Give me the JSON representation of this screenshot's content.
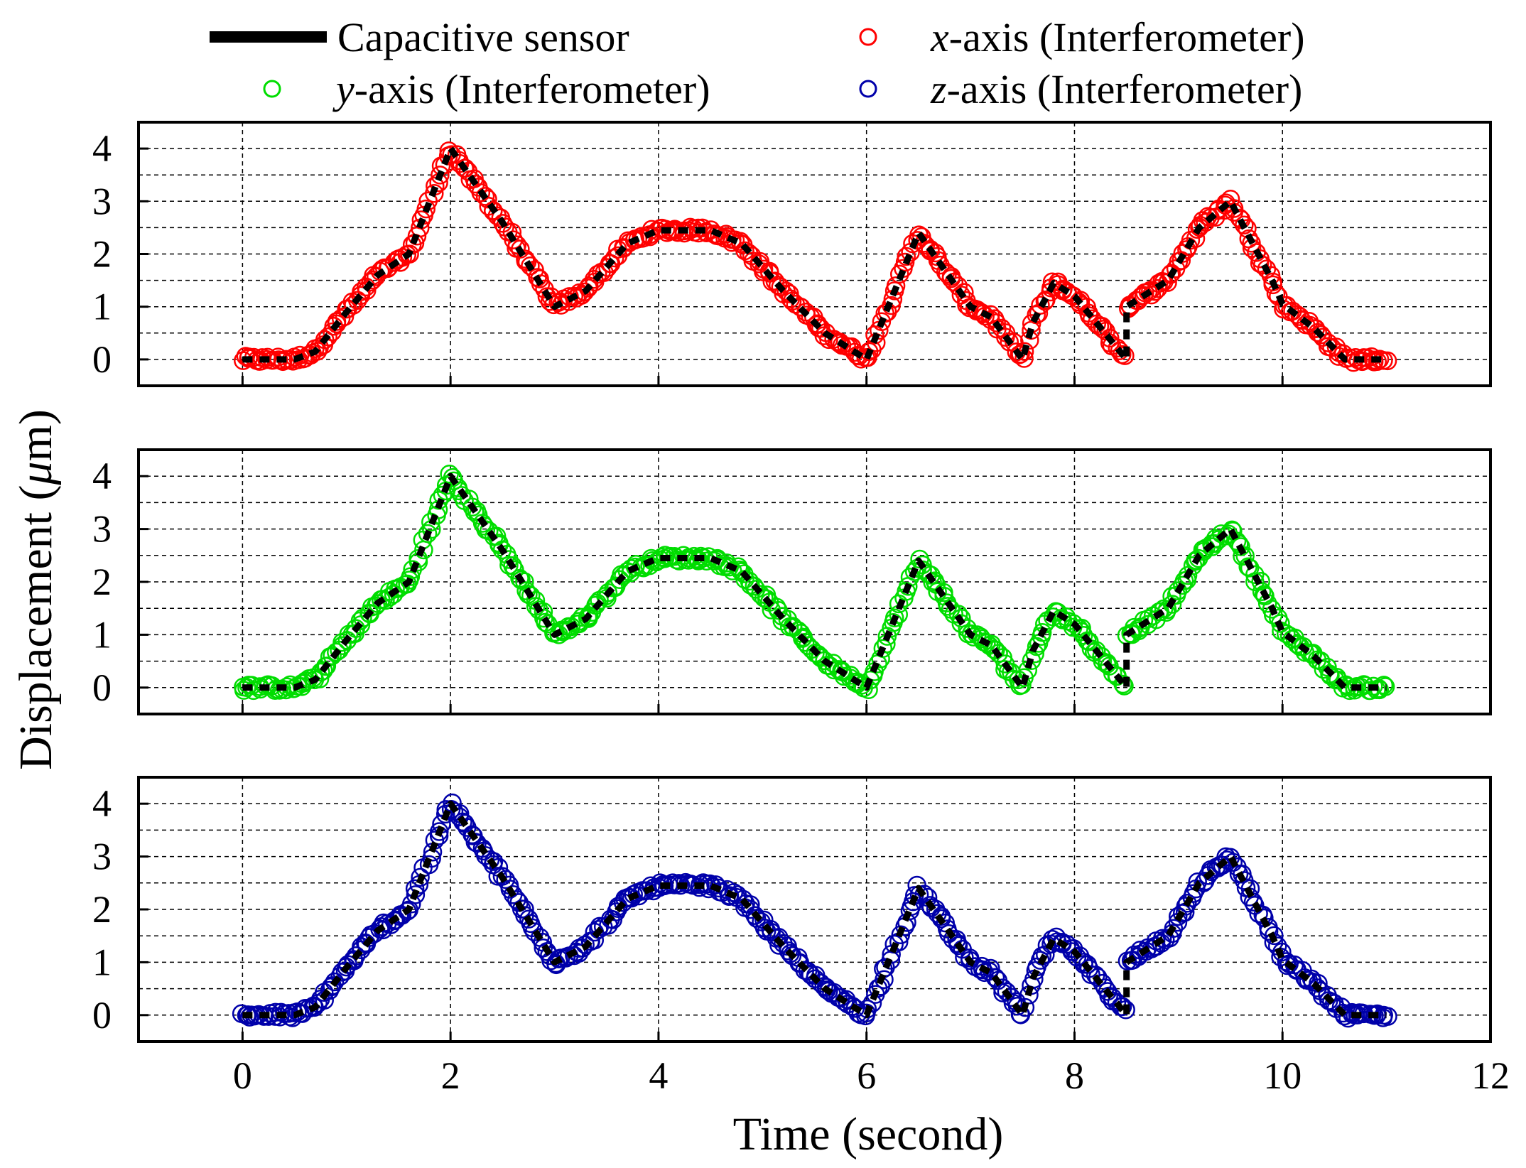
{
  "chart_data": {
    "type": "line",
    "xlabel": "Time (second)",
    "ylabel": "Displacement (",
    "ylabel_unit": "μ",
    "ylabel_unit_rest": "m)",
    "ylabel_close": "",
    "xlim": [
      -1,
      12
    ],
    "ylim": [
      -0.5,
      4.5
    ],
    "x_ticks": [
      0,
      2,
      4,
      6,
      8,
      10,
      12
    ],
    "y_ticks": [
      0,
      1,
      2,
      3,
      4
    ],
    "grid": true,
    "legend": {
      "placement": "top",
      "entries": [
        {
          "name": "Capacitive sensor",
          "italic_prefix": "",
          "marker": "line",
          "color": "#000000"
        },
        {
          "name": "-axis (Interferometer)",
          "italic_prefix": "x",
          "marker": "circle",
          "color": "#ff0000"
        },
        {
          "name": "-axis (Interferometer)",
          "italic_prefix": "y",
          "marker": "circle",
          "color": "#00dd00"
        },
        {
          "name": "-axis (Interferometer)",
          "italic_prefix": "z",
          "marker": "circle",
          "color": "#0000aa"
        }
      ]
    },
    "sensor_profile": {
      "x": [
        0,
        0.5,
        0.7,
        1.0,
        1.3,
        1.6,
        2.0,
        2.5,
        3.0,
        3.3,
        3.7,
        4.0,
        4.5,
        4.8,
        5.2,
        5.6,
        6.0,
        6.5,
        7.0,
        7.2,
        7.5,
        7.6,
        7.8,
        8.0,
        8.5,
        8.5,
        8.9,
        9.2,
        9.5,
        9.9,
        10.0,
        10.3,
        10.6,
        11.0
      ],
      "y": [
        0,
        0,
        0.15,
        0.9,
        1.6,
        2.0,
        4.0,
        2.6,
        1.0,
        1.3,
        2.2,
        2.45,
        2.45,
        2.2,
        1.3,
        0.5,
        0.0,
        2.4,
        1.0,
        0.8,
        0.0,
        0.7,
        1.45,
        1.2,
        0.0,
        1.0,
        1.5,
        2.5,
        3.0,
        1.5,
        1.05,
        0.6,
        0.0,
        0.0
      ]
    },
    "panels": [
      {
        "name": "x-axis panel",
        "series": "x-axis (Interferometer)",
        "color": "#ff0000"
      },
      {
        "name": "y-axis panel",
        "series": "y-axis (Interferometer)",
        "color": "#00dd00"
      },
      {
        "name": "z-axis panel",
        "series": "z-axis (Interferometer)",
        "color": "#0000aa"
      }
    ]
  }
}
